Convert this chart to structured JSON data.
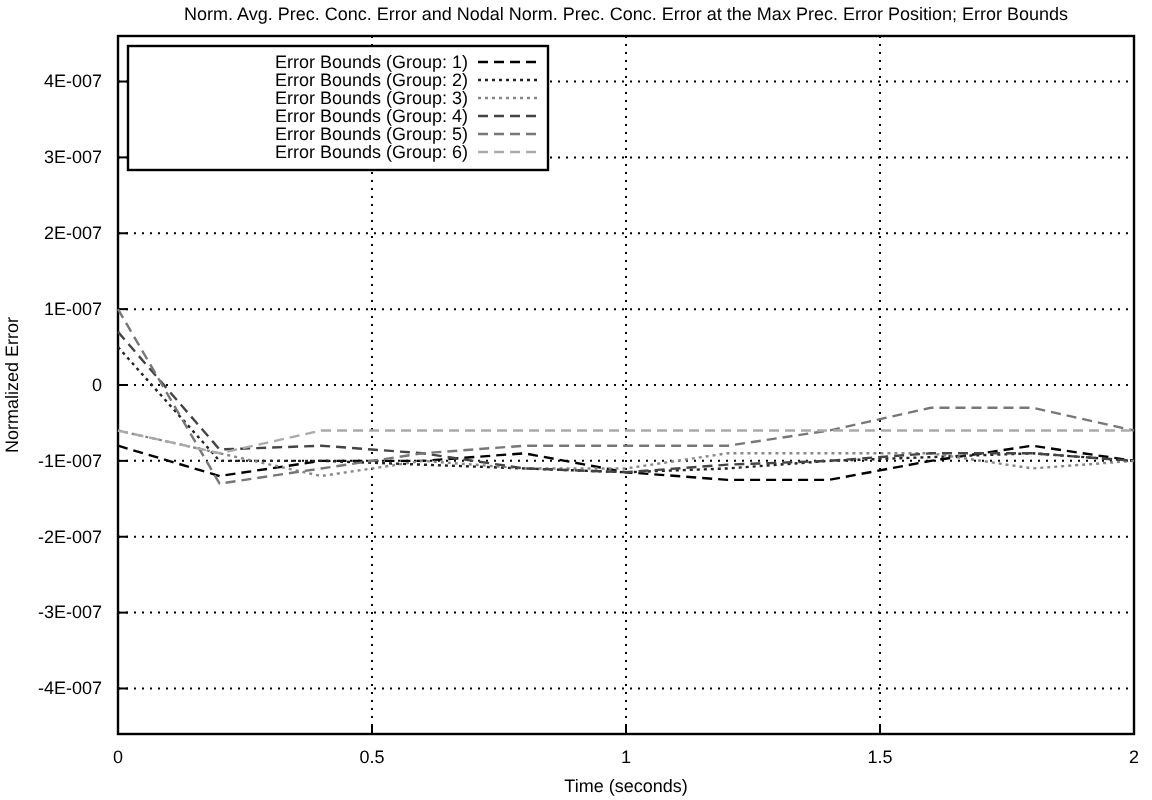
{
  "chart_data": {
    "type": "line",
    "title": "Norm. Avg. Prec. Conc. Error and Nodal Norm. Prec. Conc. Error at the Max Prec. Error Position; Error Bounds",
    "xlabel": "Time (seconds)",
    "ylabel": "Normalized Error",
    "x": [
      0,
      0.2,
      0.4,
      0.6,
      0.8,
      1.0,
      1.2,
      1.4,
      1.6,
      1.8,
      2.0
    ],
    "xlim": [
      0,
      2
    ],
    "xticks": [
      0,
      0.5,
      1,
      1.5,
      2
    ],
    "ylim": [
      -4.6e-07,
      4.6e-07
    ],
    "yticks": [
      {
        "value": -4e-07,
        "label": "-4E-007"
      },
      {
        "value": -3e-07,
        "label": "-3E-007"
      },
      {
        "value": -2e-07,
        "label": "-2E-007"
      },
      {
        "value": -1e-07,
        "label": "-1E-007"
      },
      0,
      {
        "value": 1e-07,
        "label": "1E-007"
      },
      {
        "value": 2e-07,
        "label": "2E-007"
      },
      {
        "value": 3e-07,
        "label": "3E-007"
      },
      {
        "value": 4e-07,
        "label": "4E-007"
      }
    ],
    "grid": true,
    "legend": "top left",
    "series": [
      {
        "name": "Error Bounds (Group: 1)",
        "color": "#000000",
        "line_style": "dashed",
        "values": [
          -8e-08,
          -1.2e-07,
          -1e-07,
          -1e-07,
          -9e-08,
          -1.15e-07,
          -1.25e-07,
          -1.25e-07,
          -1e-07,
          -8e-08,
          -1e-07
        ]
      },
      {
        "name": "Error Bounds (Group: 2)",
        "color": "#222222",
        "line_style": "dotted",
        "values": [
          5e-08,
          -1e-07,
          -1e-07,
          -1.05e-07,
          -1.1e-07,
          -1.15e-07,
          -1.1e-07,
          -1e-07,
          -9.5e-08,
          -9e-08,
          -1e-07
        ]
      },
      {
        "name": "Error Bounds (Group: 3)",
        "color": "#888888",
        "line_style": "dotted",
        "values": [
          -6e-08,
          -9e-08,
          -1.2e-07,
          -1e-07,
          -1.1e-07,
          -1.1e-07,
          -9e-08,
          -9e-08,
          -9e-08,
          -1.1e-07,
          -1e-07
        ]
      },
      {
        "name": "Error Bounds (Group: 4)",
        "color": "#444444",
        "line_style": "dashed",
        "values": [
          7e-08,
          -8.5e-08,
          -8e-08,
          -9e-08,
          -1.1e-07,
          -1.15e-07,
          -1.05e-07,
          -1e-07,
          -9e-08,
          -9e-08,
          -1e-07
        ]
      },
      {
        "name": "Error Bounds (Group: 5)",
        "color": "#777777",
        "line_style": "dashed",
        "values": [
          1e-07,
          -1.3e-07,
          -1.1e-07,
          -9e-08,
          -8e-08,
          -8e-08,
          -8e-08,
          -6e-08,
          -3e-08,
          -3e-08,
          -6e-08
        ]
      },
      {
        "name": "Error Bounds (Group: 6)",
        "color": "#aaaaaa",
        "line_style": "dashed",
        "values": [
          -6e-08,
          -9e-08,
          -6e-08,
          -6e-08,
          -6e-08,
          -6e-08,
          -6e-08,
          -6e-08,
          -6e-08,
          -6e-08,
          -6e-08
        ]
      }
    ]
  }
}
